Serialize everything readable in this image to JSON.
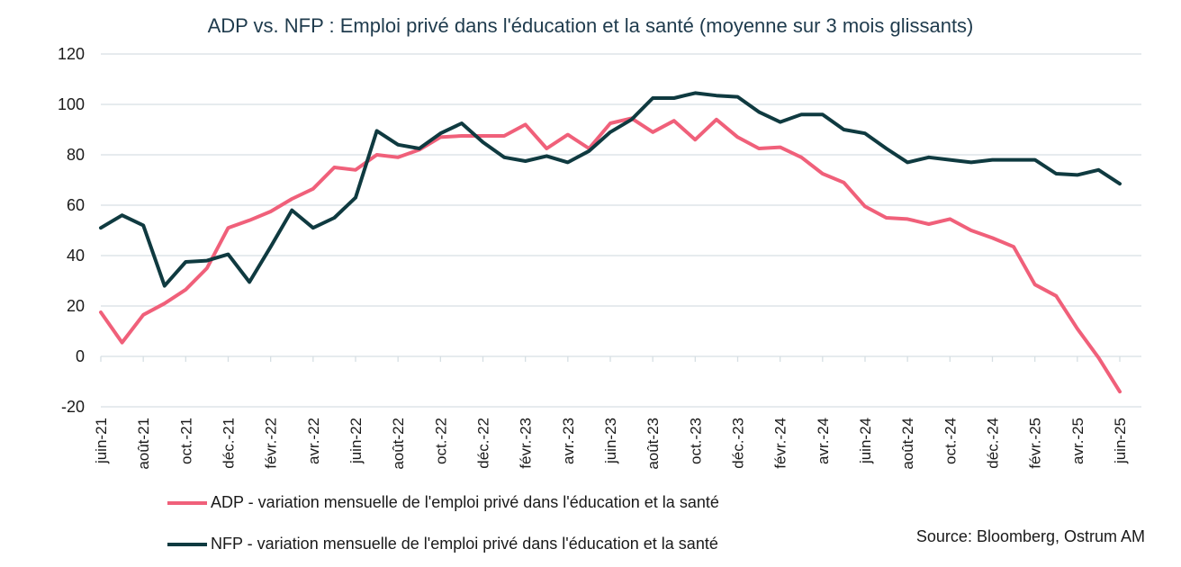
{
  "chart_data": {
    "type": "line",
    "title": "ADP vs. NFP : Emploi privé dans l'éducation et la santé (moyenne sur 3 mois glissants)",
    "xlabel": "",
    "ylabel": "",
    "ylim": [
      -20,
      120
    ],
    "yticks": [
      -20,
      0,
      20,
      40,
      60,
      80,
      100,
      120
    ],
    "grid": true,
    "legend_position": "bottom-left",
    "x": [
      "juin-21",
      "juil.-21",
      "août-21",
      "sept.-21",
      "oct.-21",
      "nov.-21",
      "déc.-21",
      "janv.-22",
      "févr.-22",
      "mars-22",
      "avr.-22",
      "mai-22",
      "juin-22",
      "juil.-22",
      "août-22",
      "sept.-22",
      "oct.-22",
      "nov.-22",
      "déc.-22",
      "janv.-23",
      "févr.-23",
      "mars-23",
      "avr.-23",
      "mai-23",
      "juin-23",
      "juil.-23",
      "août-23",
      "sept.-23",
      "oct.-23",
      "nov.-23",
      "déc.-23",
      "janv.-24",
      "févr.-24",
      "mars-24",
      "avr.-24",
      "mai-24",
      "juin-24",
      "juil.-24",
      "août-24",
      "sept.-24",
      "oct.-24",
      "nov.-24",
      "déc.-24",
      "janv.-25",
      "févr.-25",
      "mars-25",
      "avr.-25",
      "mai-25",
      "juin-25"
    ],
    "xtick_labels": [
      "juin-21",
      "août-21",
      "oct.-21",
      "déc.-21",
      "févr.-22",
      "avr.-22",
      "juin-22",
      "août-22",
      "oct.-22",
      "déc.-22",
      "févr.-23",
      "avr.-23",
      "juin-23",
      "août-23",
      "oct.-23",
      "déc.-23",
      "févr.-24",
      "avr.-24",
      "juin-24",
      "août-24",
      "oct.-24",
      "déc.-24",
      "févr.-25",
      "avr.-25",
      "juin-25"
    ],
    "series": [
      {
        "name": "ADP - variation mensuelle de l'emploi privé dans l'éducation et la santé",
        "color": "#f0607a",
        "values": [
          17.5,
          5.5,
          16.5,
          21,
          26.5,
          35,
          51,
          54,
          57.5,
          62.5,
          66.5,
          75,
          74,
          80,
          79,
          82,
          87,
          87.5,
          87.5,
          87.5,
          92,
          82.5,
          88,
          82.5,
          92.5,
          94.5,
          89,
          93.5,
          86,
          94,
          87,
          82.5,
          83,
          79,
          72.5,
          69,
          59.5,
          55,
          54.5,
          52.5,
          54.5,
          50,
          47,
          43.5,
          28.5,
          24,
          11,
          -0.5,
          -14
        ]
      },
      {
        "name": "NFP - variation mensuelle de l'emploi privé dans l'éducation et la santé",
        "color": "#0f3a40",
        "values": [
          51,
          56,
          52,
          28,
          37.5,
          38,
          40.5,
          29.5,
          43.5,
          58,
          51,
          55,
          63,
          89.5,
          84,
          82.5,
          88.5,
          92.5,
          85,
          79,
          77.5,
          79.5,
          77,
          81.5,
          89,
          94,
          102.5,
          102.5,
          104.5,
          103.5,
          103,
          97,
          93,
          96,
          96,
          90,
          88.5,
          82.5,
          77,
          79,
          78,
          77,
          78,
          78,
          78,
          72.5,
          72,
          74,
          68.5
        ]
      }
    ]
  },
  "source": "Source: Bloomberg, Ostrum AM"
}
